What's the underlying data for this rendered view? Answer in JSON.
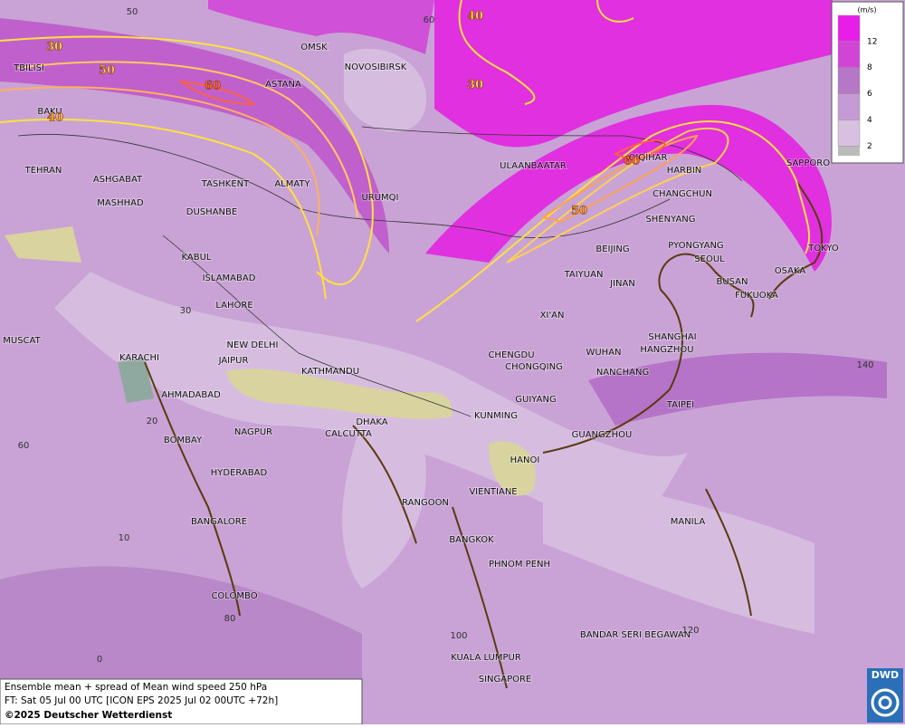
{
  "map": {
    "cities": [
      "OMSK",
      "NOVOSIBIRSK",
      "TBILISI",
      "ASTANA",
      "BAKU",
      "TEHRAN",
      "ASHGABAT",
      "MASHHAD",
      "TASHKENT",
      "ALMATY",
      "DUSHANBE",
      "URUMQI",
      "KABUL",
      "ISLAMABAD",
      "LAHORE",
      "NEW DELHI",
      "JAIPUR",
      "KARACHI",
      "MUSCAT",
      "AHMADABAD",
      "KATHMANDU",
      "DHAKA",
      "CALCUTTA",
      "BOMBAY",
      "NAGPUR",
      "HYDERABAD",
      "BANGALORE",
      "COLOMBO",
      "ULAANBAATAR",
      "QIQIHAR",
      "HARBIN",
      "CHANGCHUN",
      "SHENYANG",
      "PYONGYANG",
      "SEOUL",
      "BUSAN",
      "FUKUOKA",
      "OSAKA",
      "TOKYO",
      "SAPPORO",
      "BEIJING",
      "TAIYUAN",
      "JINAN",
      "XI'AN",
      "CHENGDU",
      "CHONGQING",
      "WUHAN",
      "SHANGHAI",
      "HANGZHOU",
      "NANCHANG",
      "GUIYANG",
      "KUNMING",
      "TAIPEI",
      "GUANGZHOU",
      "HANOI",
      "VIENTIANE",
      "RANGOON",
      "BANGKOK",
      "PHNOM PENH",
      "MANILA",
      "BANDAR SERI BEGAWAN",
      "KUALA LUMPUR",
      "SINGAPORE"
    ],
    "grid_labels": [
      50,
      60,
      30,
      20,
      60,
      10,
      0,
      80,
      100,
      120,
      140
    ],
    "contour_labels": [
      30,
      50,
      40,
      60,
      40,
      30,
      60,
      50
    ],
    "legend": {
      "title": "(m/s)",
      "levels": [
        2,
        4,
        6,
        8,
        12
      ],
      "colors": [
        "#d8c0e0",
        "#c69ad4",
        "#b577c6",
        "#d045d6",
        "#e81ee8"
      ]
    },
    "footer": [
      "Ensemble mean + spread of Mean wind speed 250 hPa",
      "FT: Sat 05 Jul 00 UTC [ICON EPS 2025 Jul 02 00UTC +72h]",
      "©2025 Deutscher Wetterdienst"
    ],
    "logo": "DWD"
  }
}
